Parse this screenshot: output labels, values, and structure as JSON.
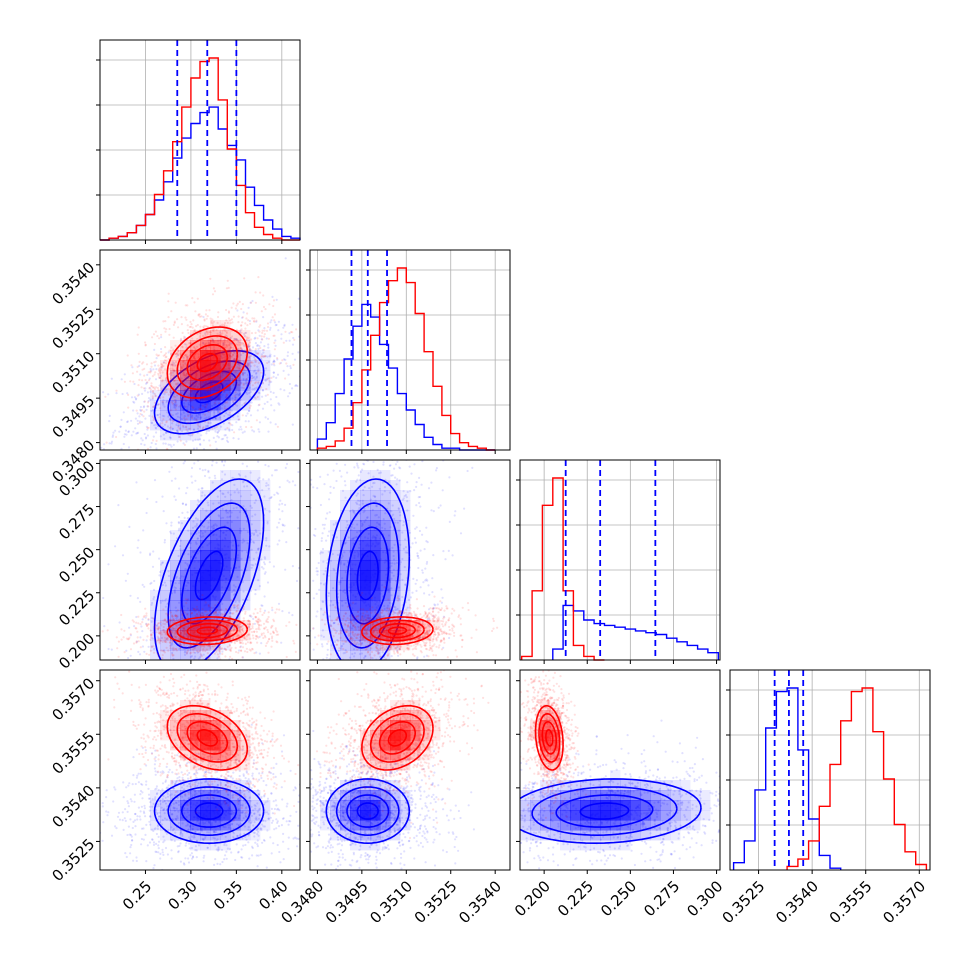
{
  "chart_data": {
    "type": "corner",
    "grid": true,
    "colors": {
      "red": "#ff0000",
      "blue": "#0000ff"
    },
    "parameters": [
      {
        "ticks": [
          0.25,
          0.3,
          0.35,
          0.4
        ],
        "tick_labels": [
          "0.25",
          "0.30",
          "0.35",
          "0.40"
        ],
        "range": [
          0.2,
          0.42
        ]
      },
      {
        "ticks": [
          0.348,
          0.3495,
          0.351,
          0.3525,
          0.354
        ],
        "tick_labels": [
          "0.3480",
          "0.3495",
          "0.3510",
          "0.3525",
          "0.3540"
        ],
        "range": [
          0.34775,
          0.3545
        ]
      },
      {
        "ticks": [
          0.2,
          0.225,
          0.25,
          0.275,
          0.3
        ],
        "tick_labels": [
          "0.200",
          "0.225",
          "0.250",
          "0.275",
          "0.300"
        ],
        "range": [
          0.186,
          0.302
        ]
      },
      {
        "ticks": [
          0.3525,
          0.354,
          0.3555,
          0.357
        ],
        "tick_labels": [
          "0.3525",
          "0.3540",
          "0.3555",
          "0.3570"
        ],
        "range": [
          0.3517,
          0.3573
        ]
      }
    ],
    "quantiles": [
      [
        0.285,
        0.318,
        0.35
      ],
      [
        0.34915,
        0.3497,
        0.35035
      ],
      [
        0.2125,
        0.2325,
        0.2645
      ],
      [
        0.35295,
        0.35335,
        0.35375
      ]
    ],
    "series": [
      {
        "color": "#ff0000",
        "mean": [
          0.318,
          0.3507,
          0.203,
          0.3554
        ],
        "sigma": [
          0.022,
          0.0006,
          0.004,
          0.00045
        ],
        "corr": [
          [
            0,
            1,
            0.3
          ],
          [
            0,
            2,
            0.1
          ],
          [
            0,
            3,
            -0.35
          ],
          [
            1,
            2,
            0.1
          ],
          [
            1,
            3,
            0.3
          ],
          [
            2,
            3,
            -0.2
          ]
        ],
        "hist": [
          {
            "edges": [
              0.2,
              0.21,
              0.22,
              0.23,
              0.24,
              0.25,
              0.26,
              0.27,
              0.28,
              0.29,
              0.3,
              0.31,
              0.32,
              0.33,
              0.34,
              0.35,
              0.36,
              0.37,
              0.38,
              0.39,
              0.4,
              0.41,
              0.42
            ],
            "counts": [
              0,
              0.01,
              0.02,
              0.04,
              0.08,
              0.14,
              0.25,
              0.38,
              0.54,
              0.73,
              0.89,
              0.98,
              1.0,
              0.77,
              0.5,
              0.3,
              0.15,
              0.07,
              0.03,
              0.01,
              0,
              0
            ]
          },
          {
            "edges": [
              0.348,
              0.3483,
              0.3486,
              0.3489,
              0.3492,
              0.3495,
              0.3498,
              0.3501,
              0.3504,
              0.3507,
              0.351,
              0.3513,
              0.3516,
              0.3519,
              0.3522,
              0.3525,
              0.3528,
              0.3531,
              0.3534,
              0.3537,
              0.354
            ],
            "counts": [
              0.01,
              0.02,
              0.05,
              0.12,
              0.26,
              0.44,
              0.63,
              0.81,
              0.93,
              1.0,
              0.92,
              0.75,
              0.54,
              0.35,
              0.19,
              0.09,
              0.04,
              0.02,
              0.01,
              0
            ]
          },
          {
            "edges": [
              0.187,
              0.193,
              0.199,
              0.205,
              0.211,
              0.217,
              0.223,
              0.229,
              0.235
            ],
            "counts": [
              0.02,
              0.38,
              0.85,
              1.0,
              0.38,
              0.08,
              0.02,
              0
            ]
          },
          {
            "edges": [
              0.3533,
              0.3536,
              0.3539,
              0.3542,
              0.3545,
              0.3548,
              0.3551,
              0.3554,
              0.3557,
              0.356,
              0.3563,
              0.3566,
              0.3569,
              0.3572
            ],
            "counts": [
              0.02,
              0.06,
              0.16,
              0.35,
              0.58,
              0.82,
              0.98,
              1.0,
              0.76,
              0.5,
              0.25,
              0.1,
              0.03
            ]
          }
        ]
      },
      {
        "color": "#0000ff",
        "mean": [
          0.32,
          0.3497,
          0.235,
          0.35335
        ],
        "sigma": [
          0.03,
          0.0007,
          0.028,
          0.00045
        ],
        "corr": [
          [
            0,
            1,
            0.5
          ],
          [
            0,
            2,
            0.55
          ],
          [
            0,
            3,
            0.0
          ],
          [
            1,
            2,
            0.2
          ],
          [
            1,
            3,
            0.0
          ],
          [
            2,
            3,
            0.1
          ]
        ],
        "hist": [
          {
            "edges": [
              0.2,
              0.21,
              0.22,
              0.23,
              0.24,
              0.25,
              0.26,
              0.27,
              0.28,
              0.29,
              0.3,
              0.31,
              0.32,
              0.33,
              0.34,
              0.35,
              0.36,
              0.37,
              0.38,
              0.39,
              0.4,
              0.41,
              0.42
            ],
            "counts": [
              0,
              0.01,
              0.02,
              0.04,
              0.08,
              0.14,
              0.22,
              0.32,
              0.45,
              0.56,
              0.64,
              0.7,
              0.73,
              0.61,
              0.52,
              0.44,
              0.29,
              0.19,
              0.11,
              0.06,
              0.02,
              0.01
            ]
          },
          {
            "edges": [
              0.348,
              0.3483,
              0.3486,
              0.3489,
              0.3492,
              0.3495,
              0.3498,
              0.3501,
              0.3504,
              0.3507,
              0.351,
              0.3513,
              0.3516,
              0.3519,
              0.3522,
              0.3525,
              0.3528,
              0.3531,
              0.3534,
              0.3537,
              0.354
            ],
            "counts": [
              0.06,
              0.15,
              0.31,
              0.5,
              0.68,
              0.8,
              0.73,
              0.58,
              0.45,
              0.31,
              0.22,
              0.14,
              0.07,
              0.03,
              0.01,
              0.01,
              0,
              0,
              0,
              0
            ]
          },
          {
            "edges": [
              0.205,
              0.211,
              0.217,
              0.223,
              0.229,
              0.235,
              0.241,
              0.247,
              0.253,
              0.259,
              0.265,
              0.271,
              0.277,
              0.283,
              0.289,
              0.295,
              0.301
            ],
            "counts": [
              0.06,
              0.3,
              0.27,
              0.22,
              0.2,
              0.19,
              0.18,
              0.17,
              0.16,
              0.15,
              0.14,
              0.12,
              0.1,
              0.08,
              0.06,
              0.04
            ]
          },
          {
            "edges": [
              0.3518,
              0.3521,
              0.3524,
              0.3527,
              0.353,
              0.3533,
              0.3536,
              0.3539,
              0.3542,
              0.3545,
              0.3548
            ],
            "counts": [
              0.04,
              0.16,
              0.44,
              0.78,
              0.98,
              1.0,
              0.66,
              0.28,
              0.08,
              0.01
            ]
          }
        ]
      }
    ]
  }
}
